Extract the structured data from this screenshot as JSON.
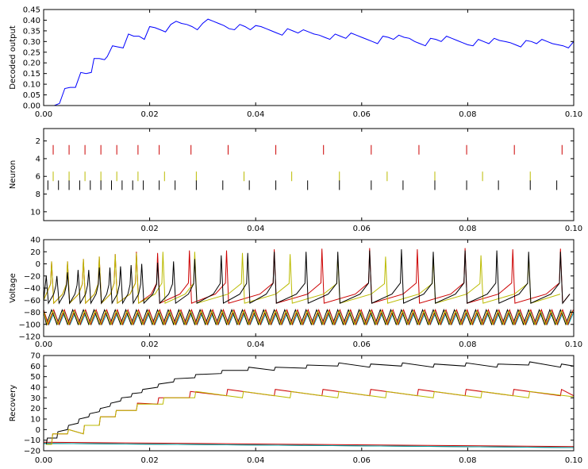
{
  "chart_data": [
    {
      "type": "line",
      "ylabel": "Decoded output",
      "xlim": [
        0,
        0.1
      ],
      "ylim": [
        0,
        0.45
      ],
      "xticks": [
        "0.00",
        "0.02",
        "0.04",
        "0.06",
        "0.08",
        "0.10"
      ],
      "yticks": [
        "0.00",
        "0.05",
        "0.10",
        "0.15",
        "0.20",
        "0.25",
        "0.30",
        "0.35",
        "0.40",
        "0.45"
      ],
      "colors": {
        "decoded": "#0000ff"
      },
      "series": [
        {
          "x": [
            0,
            0.002,
            0.003,
            0.004,
            0.005,
            0.006,
            0.007,
            0.008,
            0.009,
            0.0095,
            0.0105,
            0.0115,
            0.012,
            0.013,
            0.014,
            0.015,
            0.016,
            0.017,
            0.018,
            0.019,
            0.02,
            0.021,
            0.022,
            0.023,
            0.024,
            0.025,
            0.026,
            0.027,
            0.028,
            0.029,
            0.03,
            0.031,
            0.032,
            0.033,
            0.034,
            0.035,
            0.036,
            0.037,
            0.038,
            0.039,
            0.04,
            0.041,
            0.042,
            0.043,
            0.044,
            0.045,
            0.046,
            0.047,
            0.048,
            0.049,
            0.05,
            0.051,
            0.052,
            0.053,
            0.054,
            0.055,
            0.056,
            0.057,
            0.058,
            0.059,
            0.06,
            0.061,
            0.062,
            0.063,
            0.064,
            0.065,
            0.066,
            0.067,
            0.068,
            0.069,
            0.07,
            0.071,
            0.072,
            0.073,
            0.074,
            0.075,
            0.076,
            0.077,
            0.078,
            0.079,
            0.08,
            0.081,
            0.082,
            0.083,
            0.084,
            0.085,
            0.086,
            0.087,
            0.088,
            0.089,
            0.09,
            0.091,
            0.092,
            0.093,
            0.094,
            0.095,
            0.096,
            0.097,
            0.098,
            0.099,
            0.1
          ],
          "y": [
            0,
            0,
            0.01,
            0.08,
            0.085,
            0.085,
            0.155,
            0.15,
            0.155,
            0.22,
            0.22,
            0.215,
            0.23,
            0.28,
            0.275,
            0.27,
            0.335,
            0.325,
            0.325,
            0.31,
            0.37,
            0.365,
            0.355,
            0.345,
            0.38,
            0.395,
            0.385,
            0.38,
            0.37,
            0.355,
            0.385,
            0.405,
            0.395,
            0.385,
            0.375,
            0.36,
            0.355,
            0.38,
            0.37,
            0.355,
            0.375,
            0.37,
            0.36,
            0.35,
            0.34,
            0.33,
            0.36,
            0.35,
            0.34,
            0.355,
            0.345,
            0.335,
            0.33,
            0.32,
            0.31,
            0.335,
            0.325,
            0.315,
            0.34,
            0.33,
            0.32,
            0.31,
            0.3,
            0.29,
            0.325,
            0.32,
            0.31,
            0.33,
            0.32,
            0.315,
            0.3,
            0.29,
            0.28,
            0.315,
            0.31,
            0.3,
            0.325,
            0.315,
            0.305,
            0.295,
            0.285,
            0.28,
            0.31,
            0.3,
            0.29,
            0.315,
            0.305,
            0.3,
            0.295,
            0.285,
            0.275,
            0.305,
            0.3,
            0.29,
            0.31,
            0.3,
            0.29,
            0.285,
            0.28,
            0.27,
            0.3
          ]
        }
      ]
    },
    {
      "type": "scatter",
      "ylabel": "Neuron",
      "xlim": [
        0,
        0.1
      ],
      "ylim": [
        11,
        0.6
      ],
      "xticks": [
        "0.02",
        "0.04",
        "0.06",
        "0.08",
        "0.10"
      ],
      "yticks": [
        "2",
        "4",
        "6",
        "8",
        "10"
      ],
      "colors": {
        "row3": "#cc0000",
        "row6": "#bbbb00",
        "row7": "#000000"
      },
      "series": [
        {
          "neuron": 3,
          "color": "#cc0000",
          "x": [
            0.0018,
            0.0048,
            0.0078,
            0.0108,
            0.0138,
            0.0178,
            0.0218,
            0.0278,
            0.0348,
            0.0438,
            0.0528,
            0.0618,
            0.0708,
            0.0798,
            0.0888,
            0.0978
          ]
        },
        {
          "neuron": 6,
          "color": "#bbbb00",
          "x": [
            0.0018,
            0.0048,
            0.0078,
            0.0108,
            0.0138,
            0.0178,
            0.0228,
            0.0288,
            0.0378,
            0.0468,
            0.0558,
            0.0648,
            0.0738,
            0.0828,
            0.0918
          ]
        },
        {
          "neuron": 7,
          "color": "#000000",
          "x": [
            0.0008,
            0.0028,
            0.0048,
            0.0068,
            0.0088,
            0.0108,
            0.0128,
            0.0148,
            0.0168,
            0.0188,
            0.0218,
            0.0248,
            0.0288,
            0.0338,
            0.0388,
            0.0438,
            0.0498,
            0.0558,
            0.0618,
            0.0678,
            0.0738,
            0.0798,
            0.0858,
            0.0918,
            0.0968
          ]
        }
      ]
    },
    {
      "type": "line",
      "ylabel": "Voltage",
      "xlim": [
        0,
        0.1
      ],
      "ylim": [
        -120,
        40
      ],
      "xticks": [
        "0.00",
        "0.02",
        "0.04",
        "0.06",
        "0.08",
        "0.10"
      ],
      "yticks": [
        "40",
        "20",
        "0",
        "−20",
        "−40",
        "−60",
        "−80",
        "−100",
        "−120"
      ],
      "spiking_neurons": [
        {
          "color": "#cc0000",
          "spikes": [
            0.0015,
            0.0045,
            0.0075,
            0.0105,
            0.0135,
            0.0175,
            0.0215,
            0.0275,
            0.0345,
            0.0435,
            0.0525,
            0.0615,
            0.0705,
            0.0795,
            0.0885,
            0.0975
          ],
          "peaks": [
            4,
            4,
            8,
            12,
            16,
            20,
            18,
            22,
            22,
            24,
            25,
            26,
            24,
            26,
            24,
            25
          ]
        },
        {
          "color": "#bbbb00",
          "spikes": [
            0.0015,
            0.0045,
            0.0075,
            0.0105,
            0.0135,
            0.0175,
            0.0225,
            0.0285,
            0.0375,
            0.0465,
            0.0555,
            0.0645,
            0.0735,
            0.0825,
            0.0915
          ],
          "peaks": [
            4,
            4,
            8,
            12,
            16,
            18,
            20,
            20,
            18,
            16,
            14,
            12,
            12,
            14,
            14
          ]
        },
        {
          "color": "#000000",
          "spikes": [
            0.0005,
            0.0025,
            0.0045,
            0.0065,
            0.0085,
            0.0105,
            0.0125,
            0.0145,
            0.0165,
            0.0185,
            0.0215,
            0.0245,
            0.0285,
            0.0335,
            0.0385,
            0.0435,
            0.0495,
            0.0555,
            0.0615,
            0.0675,
            0.0735,
            0.0795,
            0.0855,
            0.0915,
            0.0975
          ],
          "peaks": [
            -20,
            -20,
            -14,
            -10,
            -10,
            -6,
            -6,
            -4,
            -2,
            0,
            2,
            4,
            8,
            14,
            18,
            20,
            20,
            20,
            22,
            24,
            20,
            22,
            22,
            20,
            20
          ]
        }
      ],
      "oscillating_neurons": [
        {
          "color": "#00aaaa",
          "center": -90,
          "amplitude": 10,
          "period": 0.002,
          "phase": 0.0
        },
        {
          "color": "#000000",
          "center": -88,
          "amplitude": 12,
          "period": 0.002,
          "phase": 0.0005
        },
        {
          "color": "#cc0000",
          "center": -88,
          "amplitude": 12,
          "period": 0.002,
          "phase": 0.0001
        },
        {
          "color": "#bbbb00",
          "center": -89,
          "amplitude": 11,
          "period": 0.002,
          "phase": 0.0003
        }
      ]
    },
    {
      "type": "line",
      "ylabel": "Recovery",
      "xlim": [
        0,
        0.1
      ],
      "ylim": [
        -20,
        70
      ],
      "xticks": [
        "0.00",
        "0.02",
        "0.04",
        "0.06",
        "0.08",
        "0.10"
      ],
      "yticks": [
        "70",
        "60",
        "50",
        "40",
        "30",
        "20",
        "10",
        "0",
        "−10",
        "−20"
      ],
      "series": [
        {
          "color": "#000000",
          "x": [
            0.0005,
            0.0025,
            0.0045,
            0.0065,
            0.0085,
            0.0105,
            0.0125,
            0.0145,
            0.0165,
            0.0185,
            0.0215,
            0.0245,
            0.0285,
            0.0335,
            0.0385,
            0.0435,
            0.0495,
            0.0555,
            0.0615,
            0.0675,
            0.0735,
            0.0795,
            0.0855,
            0.0915,
            0.0975
          ],
          "pre": [
            -14,
            -8,
            0,
            6,
            12,
            17,
            22,
            27,
            31,
            35,
            40,
            45,
            49,
            53,
            56,
            56,
            58,
            60,
            59,
            60,
            59,
            60,
            59,
            61,
            59
          ],
          "post": [
            -8,
            -2,
            4,
            10,
            15,
            20,
            25,
            30,
            34,
            38,
            43,
            48,
            52,
            56,
            59,
            59,
            61,
            63,
            62,
            63,
            62,
            63,
            62,
            64,
            62
          ],
          "end": 60
        },
        {
          "color": "#cc0000",
          "x": [
            0.0015,
            0.0045,
            0.0075,
            0.0105,
            0.0135,
            0.0175,
            0.0215,
            0.0275,
            0.0345,
            0.0435,
            0.0525,
            0.0615,
            0.0705,
            0.0795,
            0.0885,
            0.0975
          ],
          "pre": [
            -14,
            -4,
            -4,
            4,
            12,
            18,
            24,
            30,
            32,
            32,
            32,
            32,
            32,
            32,
            32,
            32
          ],
          "post": [
            -4,
            0,
            4,
            12,
            18,
            25,
            30,
            36,
            38,
            38,
            38,
            38,
            38,
            38,
            38,
            38
          ],
          "end": 32
        },
        {
          "color": "#bbbb00",
          "x": [
            0.0015,
            0.0045,
            0.0075,
            0.0105,
            0.0135,
            0.0175,
            0.0225,
            0.0285,
            0.0375,
            0.0465,
            0.0555,
            0.0645,
            0.0735,
            0.0825,
            0.0915
          ],
          "pre": [
            -14,
            -4,
            -4,
            4,
            12,
            18,
            24,
            30,
            30,
            30,
            30,
            30,
            30,
            30,
            30
          ],
          "post": [
            -4,
            0,
            4,
            12,
            18,
            24,
            30,
            36,
            36,
            36,
            36,
            36,
            36,
            36,
            36
          ],
          "end": 31
        }
      ],
      "flat_series": [
        {
          "color": "#000000",
          "start": -13,
          "end": -17
        },
        {
          "color": "#cc0000",
          "start": -12,
          "end": -16
        },
        {
          "color": "#00aaaa",
          "start": -13,
          "end": -17
        }
      ]
    }
  ]
}
